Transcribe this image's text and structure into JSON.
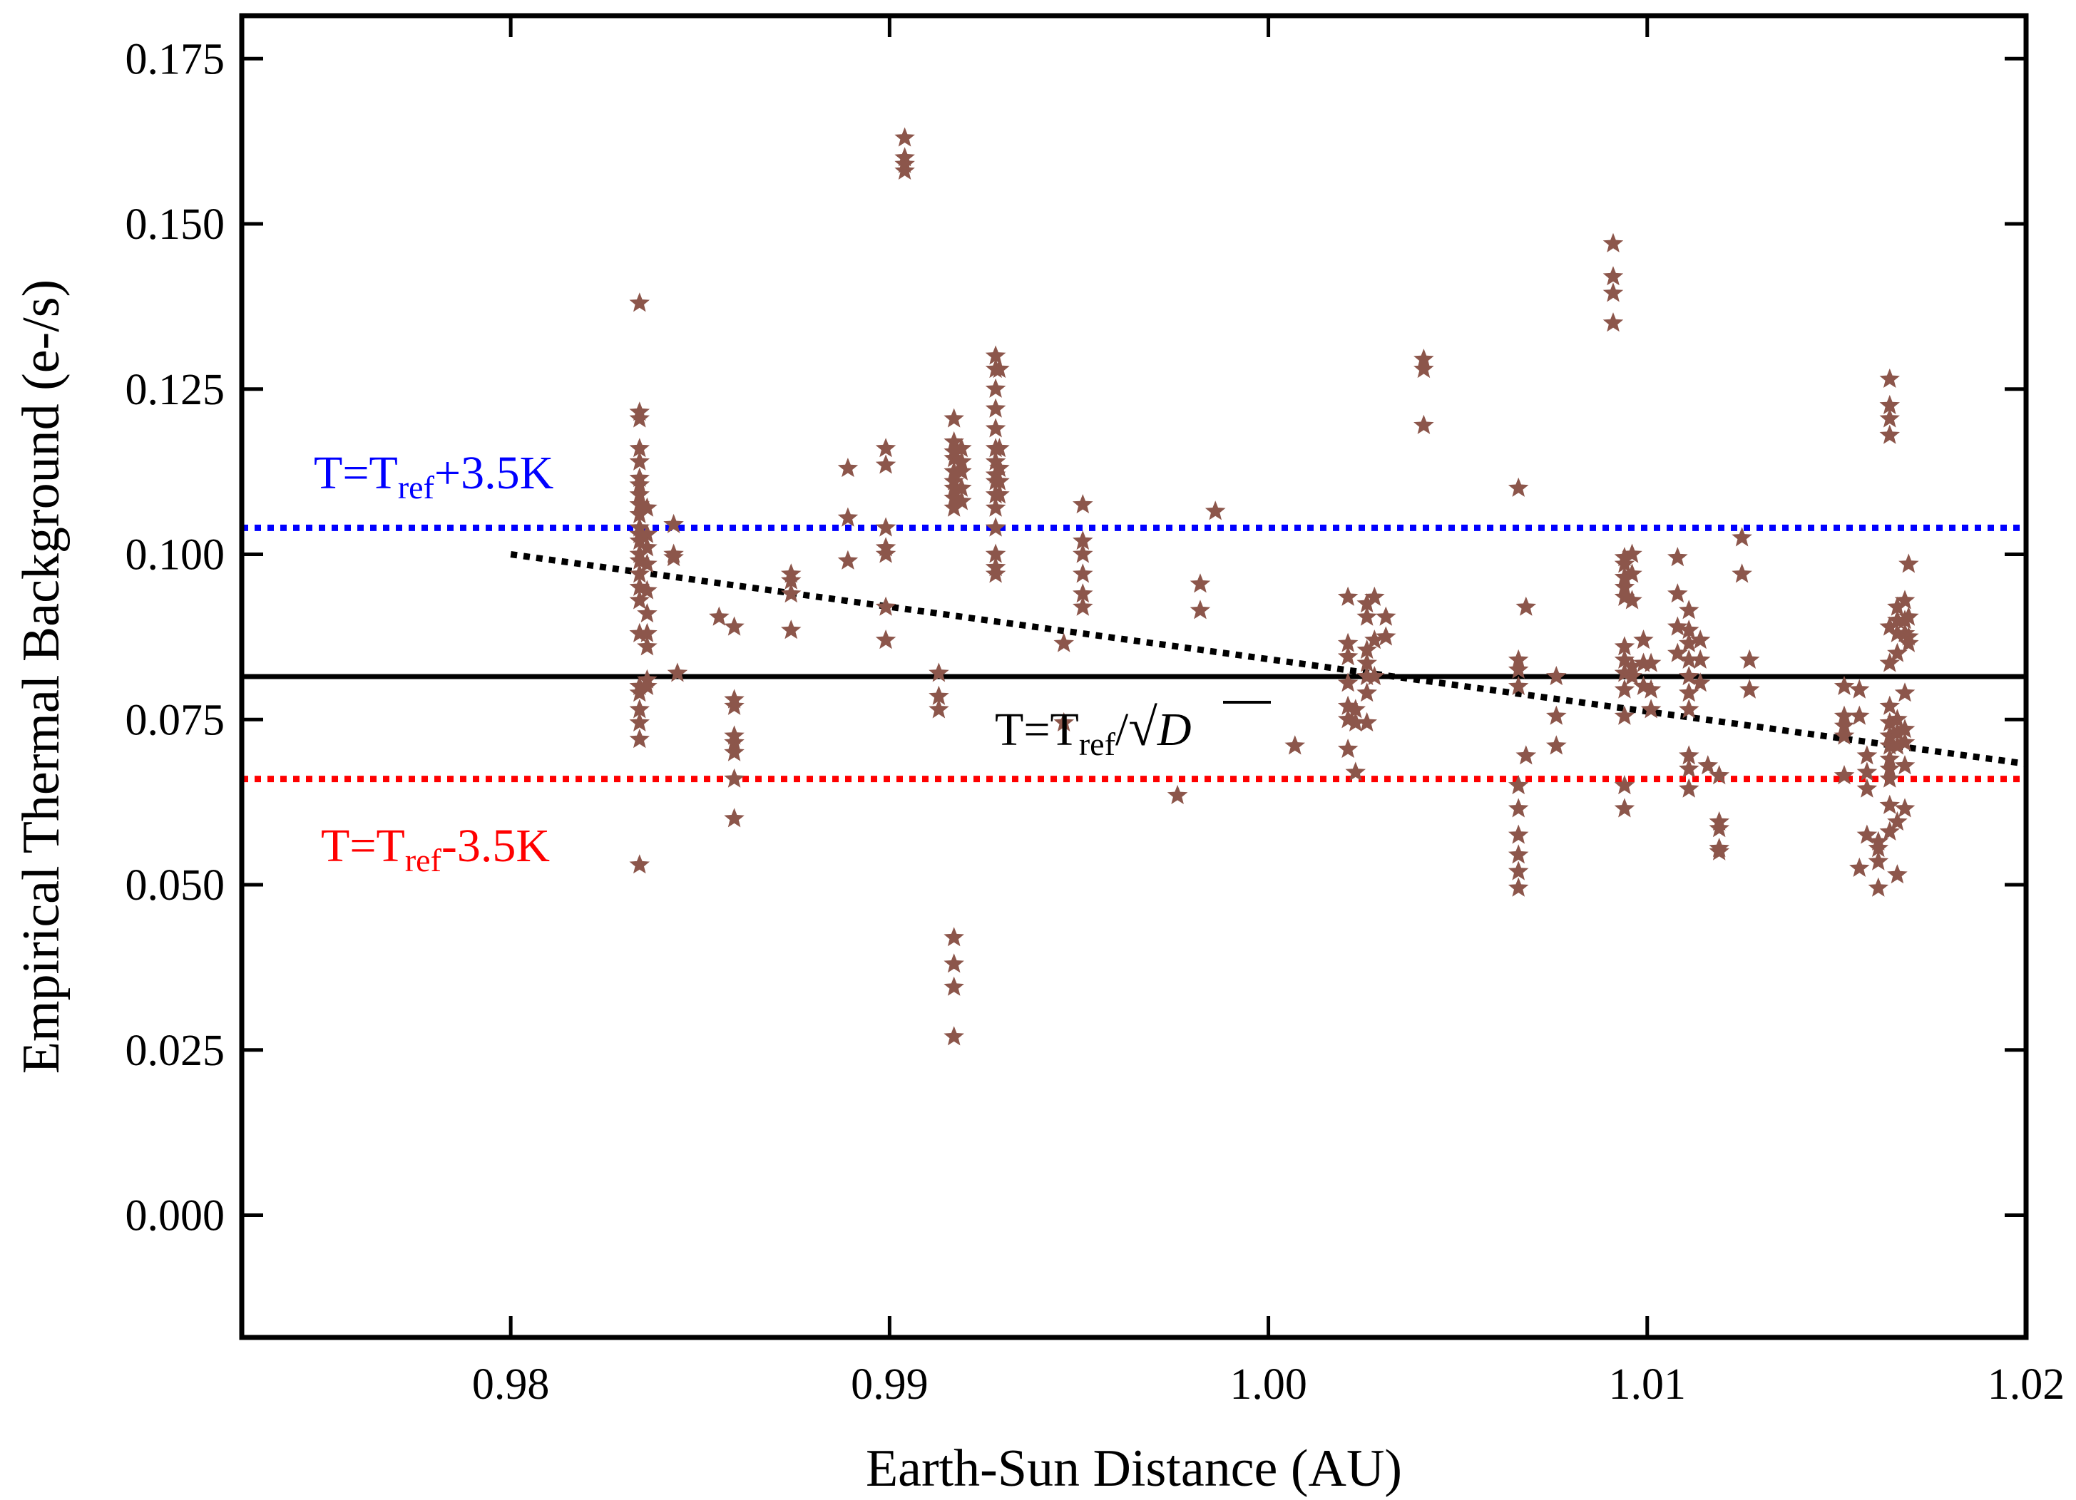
{
  "chart_data": {
    "type": "scatter",
    "title": "",
    "xlabel": "Earth-Sun Distance (AU)",
    "ylabel": "Empirical Thermal Background (e-/s)",
    "xlim": [
      0.9729,
      1.02
    ],
    "ylim": [
      -0.0185,
      0.1815
    ],
    "grid": false,
    "legend": "none",
    "x_ticks": [
      0.98,
      0.99,
      1.0,
      1.01,
      1.02
    ],
    "x_tick_labels": [
      "0.98",
      "0.99",
      "1.00",
      "1.01",
      "1.02"
    ],
    "y_ticks": [
      0.0,
      0.025,
      0.05,
      0.075,
      0.1,
      0.125,
      0.15,
      0.175
    ],
    "y_tick_labels": [
      "0.000",
      "0.025",
      "0.050",
      "0.075",
      "0.100",
      "0.125",
      "0.150",
      "0.175"
    ],
    "marker_color": "#8c564b",
    "reference_lines": [
      {
        "name": "reference",
        "type": "horizontal",
        "y": 0.0815,
        "style": "solid",
        "color": "#000000"
      },
      {
        "name": "plus-3.5K",
        "type": "horizontal",
        "y": 0.104,
        "style": "dotted",
        "color": "#0000ff"
      },
      {
        "name": "minus-3.5K",
        "type": "horizontal",
        "y": 0.066,
        "style": "dotted",
        "color": "#ff0000"
      },
      {
        "name": "inverse-sqrt-distance",
        "type": "curve",
        "style": "dotted",
        "color": "#000000",
        "x": [
          0.98,
          0.99,
          1.0,
          1.01,
          1.02
        ],
        "y": [
          0.1,
          0.09,
          0.0815,
          0.0745,
          0.0683
        ]
      }
    ],
    "annotations": {
      "plus": {
        "main": "T=T",
        "sub": "ref",
        "tail": "+3.5K",
        "color": "#0000ff"
      },
      "minus": {
        "main": "T=T",
        "sub": "ref",
        "tail": "-3.5K",
        "color": "#ff0000"
      },
      "curve": {
        "main": "T=T",
        "sub": "ref",
        "tail": "/",
        "radical": "√",
        "radicand": "D",
        "color": "#000000"
      }
    },
    "series": [
      {
        "name": "observations",
        "points": [
          [
            0.9834,
            0.138
          ],
          [
            0.9834,
            0.1215
          ],
          [
            0.9834,
            0.1205
          ],
          [
            0.9834,
            0.116
          ],
          [
            0.9834,
            0.114
          ],
          [
            0.9834,
            0.1115
          ],
          [
            0.9834,
            0.1105
          ],
          [
            0.9834,
            0.109
          ],
          [
            0.9834,
            0.1075
          ],
          [
            0.9834,
            0.106
          ],
          [
            0.9834,
            0.104
          ],
          [
            0.9834,
            0.103
          ],
          [
            0.9834,
            0.102
          ],
          [
            0.9834,
            0.1
          ],
          [
            0.9834,
            0.099
          ],
          [
            0.9834,
            0.097
          ],
          [
            0.9834,
            0.095
          ],
          [
            0.9834,
            0.093
          ],
          [
            0.9834,
            0.088
          ],
          [
            0.9834,
            0.08
          ],
          [
            0.9834,
            0.079
          ],
          [
            0.9834,
            0.0765
          ],
          [
            0.9834,
            0.0745
          ],
          [
            0.9834,
            0.072
          ],
          [
            0.9834,
            0.053
          ],
          [
            0.9836,
            0.107
          ],
          [
            0.9836,
            0.103
          ],
          [
            0.9836,
            0.101
          ],
          [
            0.9836,
            0.0985
          ],
          [
            0.9836,
            0.0945
          ],
          [
            0.9836,
            0.091
          ],
          [
            0.9836,
            0.088
          ],
          [
            0.9836,
            0.086
          ],
          [
            0.9836,
            0.081
          ],
          [
            0.9836,
            0.08
          ],
          [
            0.9843,
            0.1045
          ],
          [
            0.9843,
            0.1
          ],
          [
            0.9843,
            0.0995
          ],
          [
            0.9844,
            0.082
          ],
          [
            0.9855,
            0.0905
          ],
          [
            0.9859,
            0.089
          ],
          [
            0.9859,
            0.078
          ],
          [
            0.9859,
            0.077
          ],
          [
            0.9859,
            0.0725
          ],
          [
            0.9859,
            0.0715
          ],
          [
            0.9859,
            0.07
          ],
          [
            0.9859,
            0.066
          ],
          [
            0.9859,
            0.06
          ],
          [
            0.9874,
            0.097
          ],
          [
            0.9874,
            0.096
          ],
          [
            0.9874,
            0.094
          ],
          [
            0.9874,
            0.0885
          ],
          [
            0.9889,
            0.113
          ],
          [
            0.9889,
            0.1055
          ],
          [
            0.9889,
            0.099
          ],
          [
            0.9899,
            0.116
          ],
          [
            0.9899,
            0.1135
          ],
          [
            0.9899,
            0.104
          ],
          [
            0.9899,
            0.101
          ],
          [
            0.9899,
            0.1
          ],
          [
            0.9899,
            0.092
          ],
          [
            0.9899,
            0.087
          ],
          [
            0.9904,
            0.163
          ],
          [
            0.9904,
            0.16
          ],
          [
            0.9904,
            0.159
          ],
          [
            0.9904,
            0.158
          ],
          [
            0.9913,
            0.082
          ],
          [
            0.9913,
            0.0785
          ],
          [
            0.9913,
            0.0765
          ],
          [
            0.9917,
            0.1205
          ],
          [
            0.9917,
            0.117
          ],
          [
            0.9917,
            0.1155
          ],
          [
            0.9917,
            0.1145
          ],
          [
            0.9917,
            0.1125
          ],
          [
            0.9917,
            0.111
          ],
          [
            0.9917,
            0.11
          ],
          [
            0.9917,
            0.1085
          ],
          [
            0.9917,
            0.107
          ],
          [
            0.9917,
            0.042
          ],
          [
            0.9917,
            0.038
          ],
          [
            0.9917,
            0.0345
          ],
          [
            0.9917,
            0.027
          ],
          [
            0.9919,
            0.116
          ],
          [
            0.9919,
            0.114
          ],
          [
            0.9919,
            0.1125
          ],
          [
            0.9919,
            0.11
          ],
          [
            0.9919,
            0.108
          ],
          [
            0.9928,
            0.13
          ],
          [
            0.9928,
            0.128
          ],
          [
            0.9928,
            0.125
          ],
          [
            0.9928,
            0.122
          ],
          [
            0.9928,
            0.119
          ],
          [
            0.9928,
            0.116
          ],
          [
            0.9928,
            0.114
          ],
          [
            0.9928,
            0.112
          ],
          [
            0.9928,
            0.111
          ],
          [
            0.9928,
            0.109
          ],
          [
            0.9928,
            0.107
          ],
          [
            0.9928,
            0.104
          ],
          [
            0.9928,
            0.1
          ],
          [
            0.9928,
            0.098
          ],
          [
            0.9928,
            0.097
          ],
          [
            0.9929,
            0.128
          ],
          [
            0.9929,
            0.116
          ],
          [
            0.9929,
            0.113
          ],
          [
            0.9929,
            0.111
          ],
          [
            0.9929,
            0.109
          ],
          [
            0.9946,
            0.0865
          ],
          [
            0.9946,
            0.0745
          ],
          [
            0.9951,
            0.1075
          ],
          [
            0.9951,
            0.102
          ],
          [
            0.9951,
            0.1
          ],
          [
            0.9951,
            0.097
          ],
          [
            0.9951,
            0.094
          ],
          [
            0.9951,
            0.092
          ],
          [
            0.9976,
            0.0635
          ],
          [
            0.9982,
            0.0955
          ],
          [
            0.9982,
            0.0915
          ],
          [
            0.9986,
            0.1065
          ],
          [
            1.0007,
            0.071
          ],
          [
            1.0021,
            0.0935
          ],
          [
            1.0021,
            0.0865
          ],
          [
            1.0021,
            0.0845
          ],
          [
            1.0021,
            0.0805
          ],
          [
            1.0021,
            0.077
          ],
          [
            1.0021,
            0.075
          ],
          [
            1.0021,
            0.0705
          ],
          [
            1.0023,
            0.0765
          ],
          [
            1.0023,
            0.0745
          ],
          [
            1.0023,
            0.067
          ],
          [
            1.0026,
            0.0925
          ],
          [
            1.0026,
            0.0905
          ],
          [
            1.0026,
            0.0855
          ],
          [
            1.0026,
            0.0835
          ],
          [
            1.0026,
            0.0815
          ],
          [
            1.0026,
            0.079
          ],
          [
            1.0026,
            0.0745
          ],
          [
            1.0028,
            0.0935
          ],
          [
            1.0028,
            0.087
          ],
          [
            1.0028,
            0.0815
          ],
          [
            1.0031,
            0.0905
          ],
          [
            1.0031,
            0.0875
          ],
          [
            1.0041,
            0.1295
          ],
          [
            1.0041,
            0.128
          ],
          [
            1.0041,
            0.1195
          ],
          [
            1.0066,
            0.11
          ],
          [
            1.0066,
            0.084
          ],
          [
            1.0066,
            0.0825
          ],
          [
            1.0066,
            0.08
          ],
          [
            1.0066,
            0.065
          ],
          [
            1.0066,
            0.0615
          ],
          [
            1.0066,
            0.0575
          ],
          [
            1.0066,
            0.0545
          ],
          [
            1.0066,
            0.052
          ],
          [
            1.0066,
            0.0495
          ],
          [
            1.0068,
            0.092
          ],
          [
            1.0068,
            0.0695
          ],
          [
            1.0076,
            0.0815
          ],
          [
            1.0076,
            0.0755
          ],
          [
            1.0076,
            0.071
          ],
          [
            1.0091,
            0.147
          ],
          [
            1.0091,
            0.142
          ],
          [
            1.0091,
            0.1395
          ],
          [
            1.0091,
            0.135
          ],
          [
            1.0094,
            0.0995
          ],
          [
            1.0094,
            0.0985
          ],
          [
            1.0094,
            0.0965
          ],
          [
            1.0094,
            0.095
          ],
          [
            1.0094,
            0.0935
          ],
          [
            1.0094,
            0.086
          ],
          [
            1.0094,
            0.084
          ],
          [
            1.0094,
            0.082
          ],
          [
            1.0094,
            0.0795
          ],
          [
            1.0094,
            0.0755
          ],
          [
            1.0094,
            0.065
          ],
          [
            1.0094,
            0.0615
          ],
          [
            1.0096,
            0.1
          ],
          [
            1.0096,
            0.097
          ],
          [
            1.0096,
            0.093
          ],
          [
            1.0096,
            0.083
          ],
          [
            1.0096,
            0.0815
          ],
          [
            1.0099,
            0.087
          ],
          [
            1.0099,
            0.0835
          ],
          [
            1.0099,
            0.08
          ],
          [
            1.0101,
            0.0835
          ],
          [
            1.0101,
            0.0795
          ],
          [
            1.0101,
            0.0765
          ],
          [
            1.0108,
            0.0995
          ],
          [
            1.0108,
            0.094
          ],
          [
            1.0108,
            0.089
          ],
          [
            1.0108,
            0.085
          ],
          [
            1.0111,
            0.0915
          ],
          [
            1.0111,
            0.0885
          ],
          [
            1.0111,
            0.0865
          ],
          [
            1.0111,
            0.084
          ],
          [
            1.0111,
            0.0815
          ],
          [
            1.0111,
            0.079
          ],
          [
            1.0111,
            0.0765
          ],
          [
            1.0111,
            0.0695
          ],
          [
            1.0111,
            0.0675
          ],
          [
            1.0111,
            0.0645
          ],
          [
            1.0114,
            0.087
          ],
          [
            1.0114,
            0.084
          ],
          [
            1.0114,
            0.0805
          ],
          [
            1.0116,
            0.068
          ],
          [
            1.0119,
            0.0665
          ],
          [
            1.0119,
            0.0595
          ],
          [
            1.0119,
            0.0585
          ],
          [
            1.0119,
            0.0555
          ],
          [
            1.0119,
            0.055
          ],
          [
            1.0125,
            0.1025
          ],
          [
            1.0125,
            0.097
          ],
          [
            1.0127,
            0.084
          ],
          [
            1.0127,
            0.0795
          ],
          [
            1.0152,
            0.08
          ],
          [
            1.0152,
            0.0755
          ],
          [
            1.0152,
            0.074
          ],
          [
            1.0152,
            0.0725
          ],
          [
            1.0152,
            0.0665
          ],
          [
            1.0156,
            0.0795
          ],
          [
            1.0156,
            0.0755
          ],
          [
            1.0156,
            0.0525
          ],
          [
            1.0158,
            0.0695
          ],
          [
            1.0158,
            0.067
          ],
          [
            1.0158,
            0.0645
          ],
          [
            1.0158,
            0.0575
          ],
          [
            1.0161,
            0.0565
          ],
          [
            1.0161,
            0.0555
          ],
          [
            1.0161,
            0.0535
          ],
          [
            1.0161,
            0.0495
          ],
          [
            1.0164,
            0.1265
          ],
          [
            1.0164,
            0.1225
          ],
          [
            1.0164,
            0.1205
          ],
          [
            1.0164,
            0.118
          ],
          [
            1.0164,
            0.089
          ],
          [
            1.0164,
            0.0835
          ],
          [
            1.0164,
            0.077
          ],
          [
            1.0164,
            0.0745
          ],
          [
            1.0164,
            0.0725
          ],
          [
            1.0164,
            0.071
          ],
          [
            1.0164,
            0.069
          ],
          [
            1.0164,
            0.0675
          ],
          [
            1.0164,
            0.066
          ],
          [
            1.0164,
            0.062
          ],
          [
            1.0164,
            0.058
          ],
          [
            1.0166,
            0.092
          ],
          [
            1.0166,
            0.09
          ],
          [
            1.0166,
            0.088
          ],
          [
            1.0166,
            0.085
          ],
          [
            1.0166,
            0.075
          ],
          [
            1.0166,
            0.073
          ],
          [
            1.0166,
            0.071
          ],
          [
            1.0166,
            0.0595
          ],
          [
            1.0166,
            0.0515
          ],
          [
            1.0168,
            0.093
          ],
          [
            1.0168,
            0.09
          ],
          [
            1.0168,
            0.088
          ],
          [
            1.0168,
            0.079
          ],
          [
            1.0168,
            0.0735
          ],
          [
            1.0168,
            0.0715
          ],
          [
            1.0168,
            0.068
          ],
          [
            1.0168,
            0.0615
          ],
          [
            1.0169,
            0.0985
          ],
          [
            1.0169,
            0.0905
          ],
          [
            1.0169,
            0.0875
          ],
          [
            1.0169,
            0.0865
          ]
        ]
      }
    ]
  }
}
